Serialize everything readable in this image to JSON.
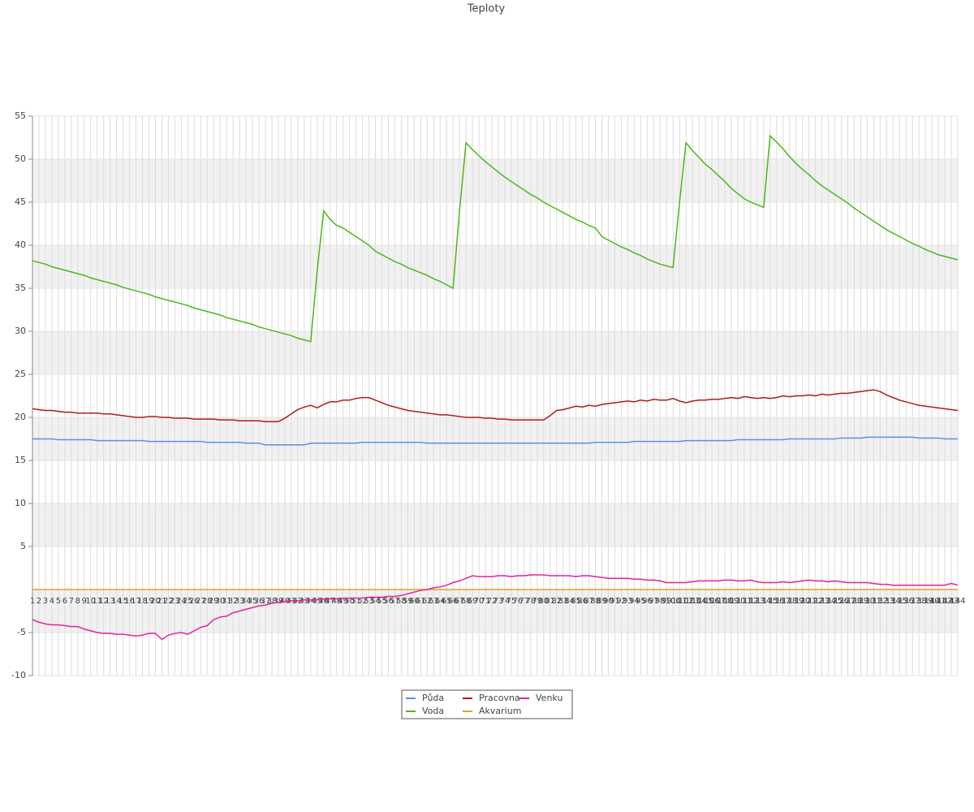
{
  "chart_data": {
    "type": "line",
    "title": "Teploty",
    "categories": [
      "1",
      "2",
      "3",
      "4",
      "5",
      "6",
      "7",
      "8",
      "9",
      "10",
      "11",
      "12",
      "13",
      "14",
      "15",
      "16",
      "17",
      "18",
      "19",
      "20",
      "21",
      "22",
      "23",
      "24",
      "25",
      "26",
      "27",
      "28",
      "29",
      "30",
      "31",
      "32",
      "33",
      "34",
      "35",
      "36",
      "37",
      "38",
      "39",
      "40",
      "41",
      "42",
      "43",
      "44",
      "45",
      "46",
      "47",
      "48",
      "49",
      "50",
      "51",
      "52",
      "53",
      "54",
      "55",
      "56",
      "57",
      "58",
      "59",
      "60",
      "61",
      "62",
      "63",
      "64",
      "65",
      "66",
      "67",
      "68",
      "69",
      "70",
      "71",
      "72",
      "73",
      "74",
      "75",
      "76",
      "77",
      "78",
      "79",
      "80",
      "81",
      "82",
      "83",
      "84",
      "85",
      "86",
      "87",
      "88",
      "89",
      "90",
      "91",
      "92",
      "93",
      "94",
      "95",
      "96",
      "97",
      "98",
      "99",
      "100",
      "101",
      "102",
      "103",
      "104",
      "105",
      "106",
      "107",
      "108",
      "109",
      "110",
      "111",
      "112",
      "113",
      "114",
      "115",
      "116",
      "117",
      "118",
      "119",
      "120",
      "121",
      "122",
      "123",
      "124",
      "125",
      "126",
      "127",
      "128",
      "129",
      "130",
      "131",
      "132",
      "133",
      "134",
      "135",
      "136",
      "137",
      "138",
      "139",
      "140",
      "141",
      "142",
      "143",
      "144"
    ],
    "ylim": [
      -10,
      55
    ],
    "yticks": [
      -10,
      -5,
      5,
      10,
      15,
      20,
      25,
      30,
      35,
      40,
      45,
      50,
      55
    ],
    "grid": true,
    "legend": "bottom",
    "series": [
      {
        "name": "Půda",
        "color": "#5b8fe0",
        "values": [
          17.5,
          17.5,
          17.5,
          17.5,
          17.4,
          17.4,
          17.4,
          17.4,
          17.4,
          17.4,
          17.3,
          17.3,
          17.3,
          17.3,
          17.3,
          17.3,
          17.3,
          17.3,
          17.2,
          17.2,
          17.2,
          17.2,
          17.2,
          17.2,
          17.2,
          17.2,
          17.2,
          17.1,
          17.1,
          17.1,
          17.1,
          17.1,
          17.1,
          17.0,
          17.0,
          17.0,
          16.8,
          16.8,
          16.8,
          16.8,
          16.8,
          16.8,
          16.8,
          17.0,
          17.0,
          17.0,
          17.0,
          17.0,
          17.0,
          17.0,
          17.0,
          17.1,
          17.1,
          17.1,
          17.1,
          17.1,
          17.1,
          17.1,
          17.1,
          17.1,
          17.1,
          17.0,
          17.0,
          17.0,
          17.0,
          17.0,
          17.0,
          17.0,
          17.0,
          17.0,
          17.0,
          17.0,
          17.0,
          17.0,
          17.0,
          17.0,
          17.0,
          17.0,
          17.0,
          17.0,
          17.0,
          17.0,
          17.0,
          17.0,
          17.0,
          17.0,
          17.0,
          17.1,
          17.1,
          17.1,
          17.1,
          17.1,
          17.1,
          17.2,
          17.2,
          17.2,
          17.2,
          17.2,
          17.2,
          17.2,
          17.2,
          17.3,
          17.3,
          17.3,
          17.3,
          17.3,
          17.3,
          17.3,
          17.3,
          17.4,
          17.4,
          17.4,
          17.4,
          17.4,
          17.4,
          17.4,
          17.4,
          17.5,
          17.5,
          17.5,
          17.5,
          17.5,
          17.5,
          17.5,
          17.5,
          17.6,
          17.6,
          17.6,
          17.6,
          17.7,
          17.7,
          17.7,
          17.7,
          17.7,
          17.7,
          17.7,
          17.7,
          17.6,
          17.6,
          17.6,
          17.6,
          17.5,
          17.5,
          17.5
        ]
      },
      {
        "name": "Voda",
        "color": "#4cb818",
        "values": [
          38.2,
          38.0,
          37.8,
          37.5,
          37.3,
          37.1,
          36.9,
          36.7,
          36.5,
          36.2,
          36.0,
          35.8,
          35.6,
          35.4,
          35.1,
          34.9,
          34.7,
          34.5,
          34.3,
          34.0,
          33.8,
          33.6,
          33.4,
          33.2,
          33.0,
          32.7,
          32.5,
          32.3,
          32.1,
          31.9,
          31.6,
          31.4,
          31.2,
          31.0,
          30.8,
          30.5,
          30.3,
          30.1,
          29.9,
          29.7,
          29.5,
          29.2,
          29.0,
          28.8,
          37.0,
          44.0,
          43.0,
          42.3,
          42.0,
          41.5,
          41.0,
          40.5,
          40.0,
          39.3,
          38.9,
          38.5,
          38.1,
          37.8,
          37.4,
          37.1,
          36.8,
          36.5,
          36.1,
          35.8,
          35.4,
          35.0,
          44.0,
          51.9,
          51.1,
          50.4,
          49.7,
          49.1,
          48.5,
          47.9,
          47.4,
          46.9,
          46.4,
          45.9,
          45.5,
          45.0,
          44.6,
          44.2,
          43.8,
          43.4,
          43.0,
          42.7,
          42.3,
          42.0,
          41.0,
          40.6,
          40.2,
          39.8,
          39.5,
          39.1,
          38.8,
          38.4,
          38.1,
          37.8,
          37.6,
          37.4,
          45.0,
          51.9,
          51.0,
          50.2,
          49.4,
          48.8,
          48.1,
          47.4,
          46.6,
          46.0,
          45.4,
          45.0,
          44.7,
          44.4,
          52.7,
          52.0,
          51.2,
          50.3,
          49.5,
          48.8,
          48.2,
          47.5,
          46.9,
          46.4,
          45.9,
          45.4,
          44.9,
          44.3,
          43.8,
          43.3,
          42.8,
          42.3,
          41.8,
          41.4,
          41.0,
          40.6,
          40.2,
          39.9,
          39.5,
          39.2,
          38.9,
          38.7,
          38.5,
          38.3
        ]
      },
      {
        "name": "Pracovna",
        "color": "#b01c1c",
        "values": [
          21.0,
          20.9,
          20.8,
          20.8,
          20.7,
          20.6,
          20.6,
          20.5,
          20.5,
          20.5,
          20.5,
          20.4,
          20.4,
          20.3,
          20.2,
          20.1,
          20.0,
          20.0,
          20.1,
          20.1,
          20.0,
          20.0,
          19.9,
          19.9,
          19.9,
          19.8,
          19.8,
          19.8,
          19.8,
          19.7,
          19.7,
          19.7,
          19.6,
          19.6,
          19.6,
          19.6,
          19.5,
          19.5,
          19.5,
          19.9,
          20.4,
          20.9,
          21.2,
          21.4,
          21.1,
          21.5,
          21.8,
          21.8,
          22.0,
          22.0,
          22.2,
          22.3,
          22.3,
          22.0,
          21.7,
          21.4,
          21.2,
          21.0,
          20.8,
          20.7,
          20.6,
          20.5,
          20.4,
          20.3,
          20.3,
          20.2,
          20.1,
          20.0,
          20.0,
          20.0,
          19.9,
          19.9,
          19.8,
          19.8,
          19.7,
          19.7,
          19.7,
          19.7,
          19.7,
          19.7,
          20.2,
          20.8,
          20.9,
          21.1,
          21.3,
          21.2,
          21.4,
          21.3,
          21.5,
          21.6,
          21.7,
          21.8,
          21.9,
          21.8,
          22.0,
          21.9,
          22.1,
          22.0,
          22.0,
          22.2,
          21.9,
          21.7,
          21.9,
          22.0,
          22.0,
          22.1,
          22.1,
          22.2,
          22.3,
          22.2,
          22.4,
          22.3,
          22.2,
          22.3,
          22.2,
          22.3,
          22.5,
          22.4,
          22.5,
          22.5,
          22.6,
          22.5,
          22.7,
          22.6,
          22.7,
          22.8,
          22.8,
          22.9,
          23.0,
          23.1,
          23.2,
          23.0,
          22.6,
          22.3,
          22.0,
          21.8,
          21.6,
          21.4,
          21.3,
          21.2,
          21.1,
          21.0,
          20.9,
          20.8
        ]
      },
      {
        "name": "Akvarium",
        "color": "#e8a020",
        "values": [
          0,
          0,
          0,
          0,
          0,
          0,
          0,
          0,
          0,
          0,
          0,
          0,
          0,
          0,
          0,
          0,
          0,
          0,
          0,
          0,
          0,
          0,
          0,
          0,
          0,
          0,
          0,
          0,
          0,
          0,
          0,
          0,
          0,
          0,
          0,
          0,
          0,
          0,
          0,
          0,
          0,
          0,
          0,
          0,
          0,
          0,
          0,
          0,
          0,
          0,
          0,
          0,
          0,
          0,
          0,
          0,
          0,
          0,
          0,
          0,
          0,
          0,
          0,
          0,
          0,
          0,
          0,
          0,
          0,
          0,
          0,
          0,
          0,
          0,
          0,
          0,
          0,
          0,
          0,
          0,
          0,
          0,
          0,
          0,
          0,
          0,
          0,
          0,
          0,
          0,
          0,
          0,
          0,
          0,
          0,
          0,
          0,
          0,
          0,
          0,
          0,
          0,
          0,
          0,
          0,
          0,
          0,
          0,
          0,
          0,
          0,
          0,
          0,
          0,
          0,
          0,
          0,
          0,
          0,
          0,
          0,
          0,
          0,
          0,
          0,
          0,
          0,
          0,
          0,
          0,
          0,
          0,
          0,
          0,
          0,
          0,
          0,
          0,
          0,
          0,
          0,
          0,
          0,
          0
        ]
      },
      {
        "name": "Venku",
        "color": "#e8209c",
        "values": [
          -3.5,
          -3.8,
          -4.0,
          -4.1,
          -4.1,
          -4.2,
          -4.3,
          -4.3,
          -4.6,
          -4.8,
          -5.0,
          -5.1,
          -5.1,
          -5.2,
          -5.2,
          -5.3,
          -5.4,
          -5.3,
          -5.1,
          -5.1,
          -5.8,
          -5.3,
          -5.1,
          -5.0,
          -5.2,
          -4.8,
          -4.4,
          -4.2,
          -3.5,
          -3.2,
          -3.1,
          -2.7,
          -2.5,
          -2.3,
          -2.1,
          -1.9,
          -1.8,
          -1.6,
          -1.5,
          -1.4,
          -1.3,
          -1.3,
          -1.2,
          -1.2,
          -1.2,
          -1.1,
          -1.1,
          -1.1,
          -1.0,
          -1.0,
          -1.0,
          -1.0,
          -0.9,
          -0.9,
          -0.9,
          -0.8,
          -0.8,
          -0.7,
          -0.5,
          -0.3,
          -0.1,
          0.0,
          0.2,
          0.3,
          0.5,
          0.8,
          1.0,
          1.3,
          1.6,
          1.5,
          1.5,
          1.5,
          1.6,
          1.6,
          1.5,
          1.6,
          1.6,
          1.7,
          1.7,
          1.7,
          1.6,
          1.6,
          1.6,
          1.6,
          1.5,
          1.6,
          1.6,
          1.5,
          1.4,
          1.3,
          1.3,
          1.3,
          1.3,
          1.2,
          1.2,
          1.1,
          1.1,
          1.0,
          0.8,
          0.8,
          0.8,
          0.8,
          0.9,
          1.0,
          1.0,
          1.0,
          1.0,
          1.1,
          1.1,
          1.0,
          1.0,
          1.1,
          0.9,
          0.8,
          0.8,
          0.8,
          0.9,
          0.8,
          0.9,
          1.0,
          1.1,
          1.0,
          1.0,
          0.9,
          1.0,
          0.9,
          0.8,
          0.8,
          0.8,
          0.8,
          0.7,
          0.6,
          0.6,
          0.5,
          0.5,
          0.5,
          0.5,
          0.5,
          0.5,
          0.5,
          0.5,
          0.5,
          0.7,
          0.5
        ]
      }
    ]
  }
}
